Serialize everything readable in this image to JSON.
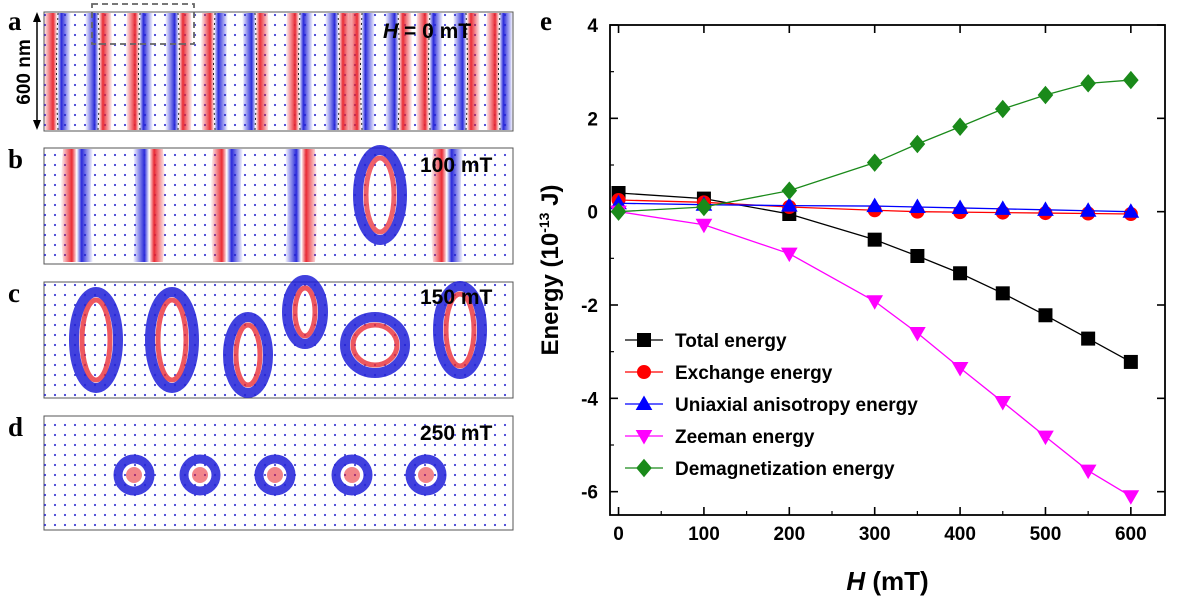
{
  "panels": [
    {
      "letter": "a",
      "italic_prefix": "H",
      "field": " = 0 mT",
      "scale_label": "600 nm"
    },
    {
      "letter": "b",
      "italic_prefix": "",
      "field": "100 mT"
    },
    {
      "letter": "c",
      "italic_prefix": "",
      "field": "150 mT"
    },
    {
      "letter": "d",
      "italic_prefix": "",
      "field": "250 mT"
    }
  ],
  "colors": {
    "positive_domain": "#e8202a",
    "negative_domain": "#2020d8",
    "background_dots": "#2b2bd0"
  },
  "chart_data": {
    "type": "line",
    "panel_letter": "e",
    "xlabel_italic": "H",
    "xlabel_rest": " (mT)",
    "ylabel_prefix": "Energy (10",
    "ylabel_exp": "-13",
    "ylabel_suffix": " J)",
    "xlim": [
      -10,
      640
    ],
    "ylim": [
      -6.5,
      4
    ],
    "xticks": [
      0,
      100,
      200,
      300,
      400,
      500,
      600
    ],
    "yticks": [
      -6,
      -4,
      -2,
      0,
      2,
      4
    ],
    "grid": false,
    "legend_position": "bottom-left",
    "series": [
      {
        "name": "Total energy",
        "color": "#000000",
        "marker": "square",
        "x": [
          0,
          100,
          200,
          300,
          350,
          400,
          450,
          500,
          550,
          600
        ],
        "y": [
          0.4,
          0.28,
          -0.05,
          -0.6,
          -0.95,
          -1.32,
          -1.75,
          -2.22,
          -2.72,
          -3.22
        ]
      },
      {
        "name": "Exchange energy",
        "color": "#ff0000",
        "marker": "circle",
        "x": [
          0,
          100,
          200,
          300,
          350,
          400,
          450,
          500,
          550,
          600
        ],
        "y": [
          0.25,
          0.2,
          0.1,
          0.03,
          0.0,
          -0.01,
          -0.02,
          -0.03,
          -0.04,
          -0.05
        ]
      },
      {
        "name": "Uniaxial anisotropy energy",
        "color": "#0000ff",
        "marker": "triangle-up",
        "x": [
          0,
          100,
          200,
          300,
          350,
          400,
          450,
          500,
          550,
          600
        ],
        "y": [
          0.18,
          0.15,
          0.13,
          0.12,
          0.1,
          0.08,
          0.06,
          0.04,
          0.02,
          0.0
        ]
      },
      {
        "name": "Zeeman energy",
        "color": "#ff00ff",
        "marker": "triangle-down",
        "x": [
          0,
          100,
          200,
          300,
          350,
          400,
          450,
          500,
          550,
          600
        ],
        "y": [
          0.0,
          -0.28,
          -0.9,
          -1.92,
          -2.6,
          -3.35,
          -4.08,
          -4.82,
          -5.55,
          -6.1
        ]
      },
      {
        "name": "Demagnetization energy",
        "color": "#1a8a1a",
        "marker": "diamond",
        "x": [
          0,
          100,
          200,
          300,
          350,
          400,
          450,
          500,
          550,
          600
        ],
        "y": [
          0.0,
          0.1,
          0.45,
          1.05,
          1.45,
          1.82,
          2.2,
          2.5,
          2.75,
          2.82
        ]
      }
    ]
  }
}
